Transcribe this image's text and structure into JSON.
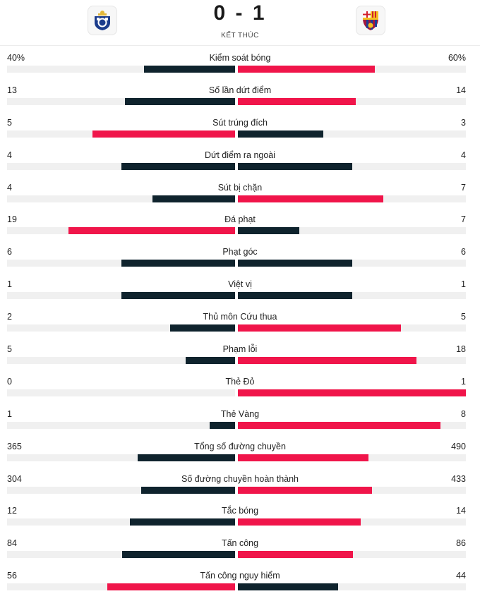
{
  "match": {
    "score": "0 - 1",
    "status": "KẾT THÚC",
    "home_logo_icon": "fc-porto-crest-icon",
    "away_logo_icon": "fc-barcelona-crest-icon"
  },
  "colors": {
    "leader": "#f0154a",
    "trailer": "#0f232d",
    "track": "#f0f0f0"
  },
  "stats": [
    {
      "name": "Kiểm soát bóng",
      "home": "40%",
      "away": "60%",
      "home_value": 40,
      "away_value": 60
    },
    {
      "name": "Số lần dứt điểm",
      "home": "13",
      "away": "14",
      "home_value": 13,
      "away_value": 14
    },
    {
      "name": "Sút trúng đích",
      "home": "5",
      "away": "3",
      "home_value": 5,
      "away_value": 3
    },
    {
      "name": "Dứt điểm ra ngoài",
      "home": "4",
      "away": "4",
      "home_value": 4,
      "away_value": 4
    },
    {
      "name": "Sút bị chặn",
      "home": "4",
      "away": "7",
      "home_value": 4,
      "away_value": 7
    },
    {
      "name": "Đá phạt",
      "home": "19",
      "away": "7",
      "home_value": 19,
      "away_value": 7
    },
    {
      "name": "Phạt góc",
      "home": "6",
      "away": "6",
      "home_value": 6,
      "away_value": 6
    },
    {
      "name": "Việt vị",
      "home": "1",
      "away": "1",
      "home_value": 1,
      "away_value": 1
    },
    {
      "name": "Thủ môn Cứu thua",
      "home": "2",
      "away": "5",
      "home_value": 2,
      "away_value": 5
    },
    {
      "name": "Phạm lỗi",
      "home": "5",
      "away": "18",
      "home_value": 5,
      "away_value": 18
    },
    {
      "name": "Thẻ Đỏ",
      "home": "0",
      "away": "1",
      "home_value": 0,
      "away_value": 1
    },
    {
      "name": "Thẻ Vàng",
      "home": "1",
      "away": "8",
      "home_value": 1,
      "away_value": 8
    },
    {
      "name": "Tổng số đường chuyền",
      "home": "365",
      "away": "490",
      "home_value": 365,
      "away_value": 490
    },
    {
      "name": "Số đường chuyền hoàn thành",
      "home": "304",
      "away": "433",
      "home_value": 304,
      "away_value": 433
    },
    {
      "name": "Tắc bóng",
      "home": "12",
      "away": "14",
      "home_value": 12,
      "away_value": 14
    },
    {
      "name": "Tấn công",
      "home": "84",
      "away": "86",
      "home_value": 84,
      "away_value": 86
    },
    {
      "name": "Tấn công nguy hiểm",
      "home": "56",
      "away": "44",
      "home_value": 56,
      "away_value": 44
    }
  ]
}
